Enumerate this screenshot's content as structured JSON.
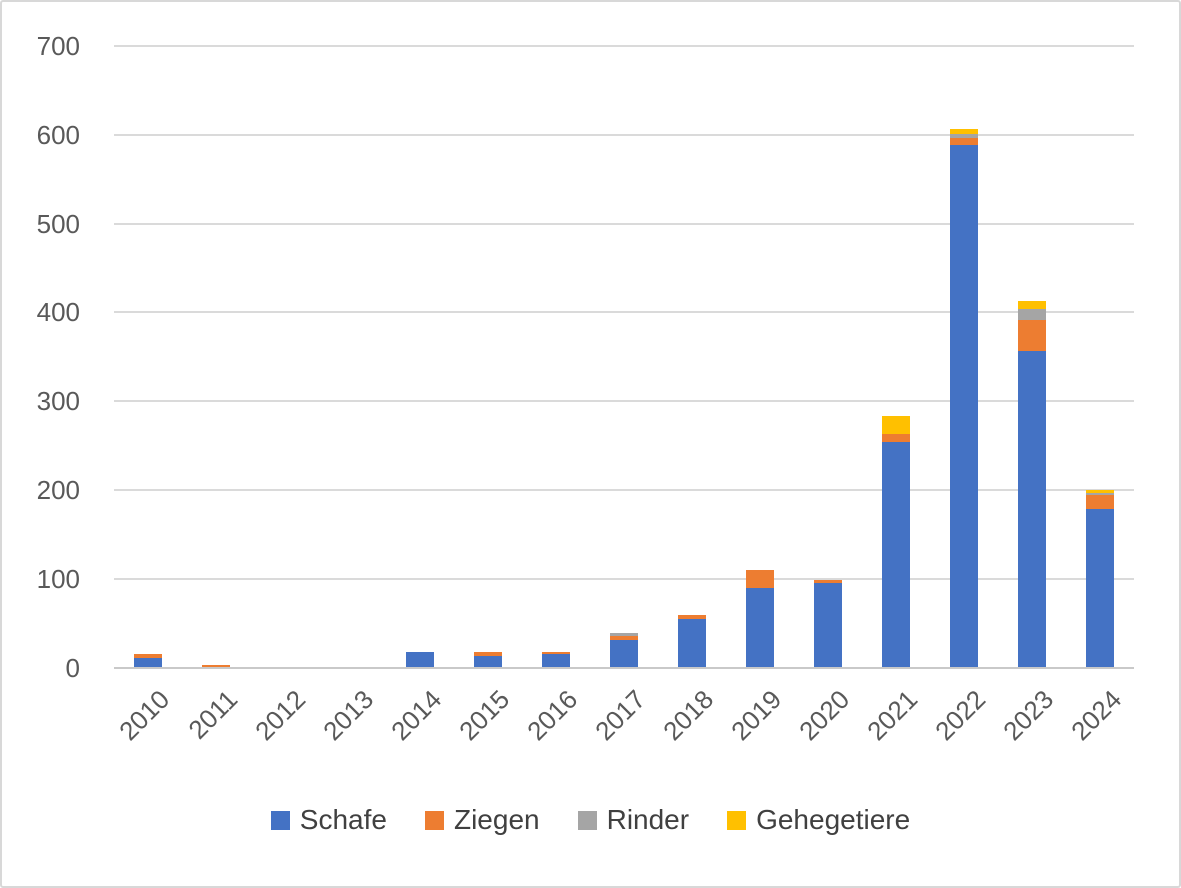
{
  "chart_data": {
    "type": "bar",
    "stacked": true,
    "title": "",
    "xlabel": "",
    "ylabel": "",
    "categories": [
      "2010",
      "2011",
      "2012",
      "2013",
      "2014",
      "2015",
      "2016",
      "2017",
      "2018",
      "2019",
      "2020",
      "2021",
      "2022",
      "2023",
      "2024"
    ],
    "series": [
      {
        "name": "Schafe",
        "color": "#4472C4",
        "values": [
          11,
          0,
          0,
          0,
          17,
          13,
          15,
          31,
          55,
          90,
          95,
          254,
          588,
          357,
          178
        ]
      },
      {
        "name": "Ziegen",
        "color": "#ED7D31",
        "values": [
          4,
          3,
          0,
          0,
          0,
          5,
          2,
          4,
          4,
          20,
          3,
          9,
          8,
          34,
          16
        ]
      },
      {
        "name": "Rinder",
        "color": "#A5A5A5",
        "values": [
          0,
          0,
          0,
          0,
          0,
          0,
          0,
          4,
          0,
          0,
          0,
          0,
          5,
          13,
          3
        ]
      },
      {
        "name": "Gehegetiere",
        "color": "#FFC000",
        "values": [
          0,
          0,
          0,
          0,
          0,
          0,
          0,
          0,
          0,
          0,
          0,
          20,
          6,
          9,
          3
        ]
      }
    ],
    "ylim": [
      0,
      700
    ],
    "yticks": [
      0,
      100,
      200,
      300,
      400,
      500,
      600,
      700
    ],
    "grid": true,
    "legend_position": "bottom"
  },
  "colors": {
    "grid": "#dadada",
    "axis": "#c9c9c9",
    "tick_text": "#595959",
    "legend_text": "#404040",
    "background": "#ffffff",
    "border": "#d8d8d8"
  }
}
